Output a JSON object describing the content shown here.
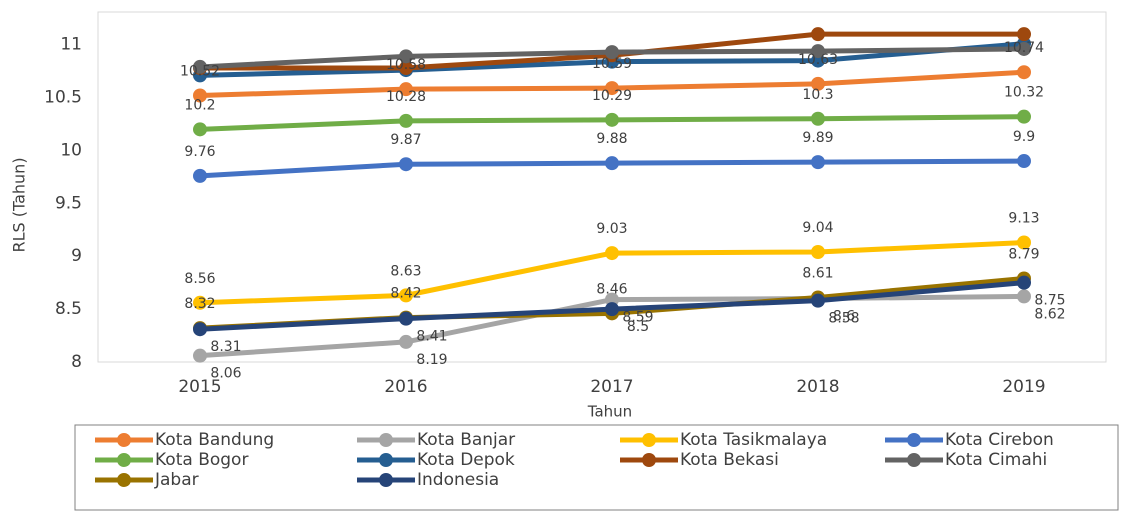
{
  "chart_data": {
    "type": "line",
    "x_label": "Tahun",
    "y_label": "RLS (Tahun)",
    "categories": [
      "2015",
      "2016",
      "2017",
      "2018",
      "2019"
    ],
    "ylim": [
      8,
      11.3
    ],
    "yticks": [
      8,
      8.5,
      9,
      9.5,
      10,
      10.5,
      11
    ],
    "series": [
      {
        "name": "Kota Bandung",
        "color": "#ED7D31",
        "data_labels": true,
        "values": [
          10.52,
          10.58,
          10.59,
          10.63,
          10.74
        ]
      },
      {
        "name": "Kota Banjar",
        "color": "#A5A5A5",
        "data_labels": true,
        "values": [
          8.06,
          8.19,
          8.59,
          8.6,
          8.62
        ]
      },
      {
        "name": "Kota Tasikmalaya",
        "color": "#FFC000",
        "data_labels": true,
        "values": [
          8.56,
          8.63,
          9.03,
          9.04,
          9.13
        ]
      },
      {
        "name": "Kota Cirebon",
        "color": "#4472C4",
        "data_labels": true,
        "values": [
          9.76,
          9.87,
          9.88,
          9.89,
          9.9
        ]
      },
      {
        "name": "Kota Bogor",
        "color": "#70AD47",
        "data_labels": true,
        "values": [
          10.2,
          10.28,
          10.29,
          10.3,
          10.32
        ]
      },
      {
        "name": "Kota Depok",
        "color": "#255E91",
        "data_labels": false,
        "values": [
          10.71,
          10.76,
          10.84,
          10.85,
          11.01
        ]
      },
      {
        "name": "Kota Bekasi",
        "color": "#9E480E",
        "data_labels": false,
        "values": [
          10.78,
          10.78,
          10.9,
          11.1,
          11.1
        ]
      },
      {
        "name": "Kota Cimahi",
        "color": "#636363",
        "data_labels": false,
        "values": [
          10.79,
          10.89,
          10.93,
          10.94,
          10.96
        ]
      },
      {
        "name": "Jabar",
        "color": "#997300",
        "data_labels": true,
        "values": [
          8.32,
          8.42,
          8.46,
          8.61,
          8.79
        ]
      },
      {
        "name": "Indonesia",
        "color": "#264478",
        "data_labels": true,
        "values": [
          8.31,
          8.41,
          8.5,
          8.58,
          8.75
        ]
      }
    ]
  }
}
